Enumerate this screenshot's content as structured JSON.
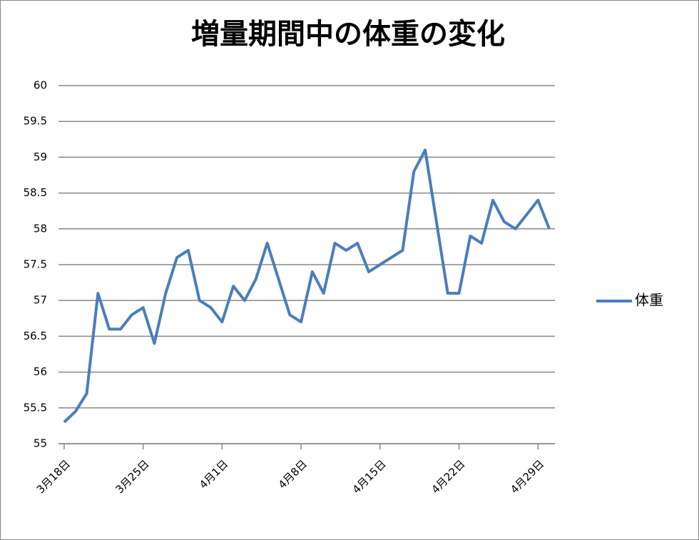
{
  "chart_data": {
    "type": "line",
    "title": "増量期間中の体重の変化",
    "categories": [
      "3月18日",
      null,
      null,
      null,
      null,
      null,
      null,
      "3月25日",
      null,
      null,
      null,
      null,
      null,
      null,
      "4月1日",
      null,
      null,
      null,
      null,
      null,
      null,
      "4月8日",
      null,
      null,
      null,
      null,
      null,
      null,
      "4月15日",
      null,
      null,
      null,
      null,
      null,
      null,
      "4月22日",
      null,
      null,
      null,
      null,
      null,
      null,
      "4月29日",
      null
    ],
    "series": [
      {
        "name": "体重",
        "color": "#4a7ebb",
        "values": [
          55.3,
          55.45,
          55.7,
          57.1,
          56.6,
          56.6,
          56.8,
          56.9,
          56.4,
          57.1,
          57.6,
          57.7,
          57.0,
          56.9,
          56.7,
          57.2,
          57.0,
          57.3,
          57.8,
          57.3,
          56.8,
          56.7,
          57.4,
          57.1,
          57.8,
          57.7,
          57.8,
          57.4,
          57.5,
          57.6,
          57.7,
          58.8,
          59.1,
          58.1,
          57.1,
          57.1,
          57.9,
          57.8,
          58.4,
          58.1,
          58.0,
          58.2,
          58.4,
          58.0
        ]
      }
    ],
    "ylim": [
      55,
      60
    ],
    "yticks": [
      55,
      55.5,
      56,
      56.5,
      57,
      57.5,
      58,
      58.5,
      59,
      59.5,
      60
    ],
    "grid": true,
    "legend": "right"
  }
}
